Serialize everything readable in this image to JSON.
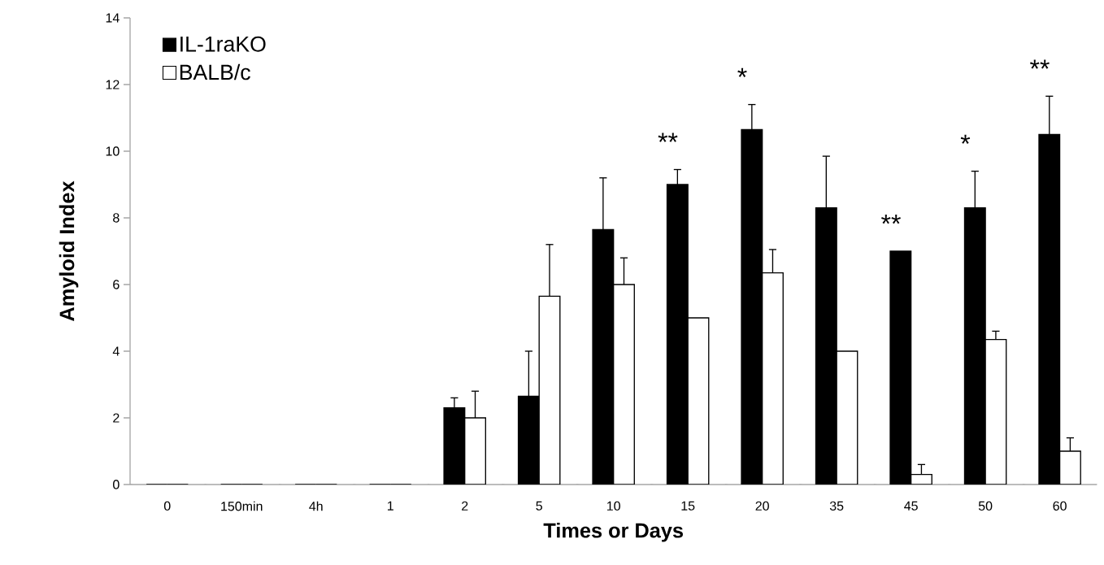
{
  "chart_data": {
    "type": "bar",
    "xlabel": "Times or Days",
    "ylabel": "Amyloid Index",
    "categories": [
      "0",
      "150min",
      "4h",
      "1",
      "2",
      "5",
      "10",
      "15",
      "20",
      "35",
      "45",
      "50",
      "60"
    ],
    "series": [
      {
        "name": "IL-1raKO",
        "color": "#000000",
        "values": [
          0,
          0,
          0,
          0,
          2.3,
          2.65,
          7.65,
          9.0,
          10.65,
          8.3,
          7.0,
          8.3,
          10.5
        ],
        "errors": [
          null,
          null,
          null,
          null,
          [
            2.3,
            2.6
          ],
          [
            2.65,
            4.0
          ],
          [
            7.65,
            9.2
          ],
          [
            9.0,
            9.45
          ],
          [
            10.65,
            11.4
          ],
          [
            8.3,
            9.85
          ],
          null,
          [
            8.3,
            9.4
          ],
          [
            10.5,
            11.65
          ]
        ]
      },
      {
        "name": "BALB/c",
        "color": "#ffffff",
        "values": [
          0,
          0,
          0,
          0,
          2.0,
          5.65,
          6.0,
          5.0,
          6.35,
          4.0,
          0.3,
          4.35,
          1.0
        ],
        "errors": [
          null,
          null,
          null,
          null,
          [
            2.0,
            2.8
          ],
          [
            5.65,
            7.2
          ],
          [
            6.0,
            6.8
          ],
          null,
          [
            6.35,
            7.05
          ],
          null,
          [
            0.3,
            0.6
          ],
          [
            4.35,
            4.6
          ],
          [
            1.0,
            1.4
          ]
        ]
      }
    ],
    "ylim": [
      0,
      14
    ],
    "yticks": [
      0,
      2,
      4,
      6,
      8,
      10,
      12,
      14
    ],
    "annotations": [
      {
        "text": "**",
        "x": "15",
        "y": 9.0
      },
      {
        "text": "*",
        "x": "20",
        "y": 10.65
      },
      {
        "text": "**",
        "x": "45",
        "y": 7.0
      },
      {
        "text": "*",
        "x": "50",
        "y": 8.3
      },
      {
        "text": "**",
        "x": "60",
        "y": 10.5
      }
    ],
    "legend": "top left",
    "marker": "square",
    "grid": false
  }
}
